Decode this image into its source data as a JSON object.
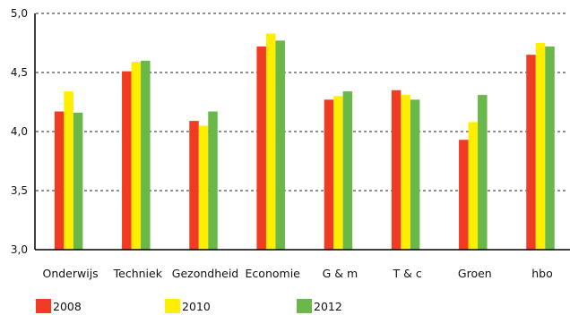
{
  "chart_data": {
    "type": "bar",
    "categories": [
      "Onderwijs",
      "Techniek",
      "Gezondheid",
      "Economie",
      "G & m",
      "T & c",
      "Groen",
      "hbo"
    ],
    "series": [
      {
        "name": "2008",
        "color": "#f03c24",
        "values": [
          4.17,
          4.51,
          4.09,
          4.72,
          4.27,
          4.35,
          3.93,
          4.65
        ]
      },
      {
        "name": "2010",
        "color": "#ffee00",
        "values": [
          4.34,
          4.59,
          4.05,
          4.83,
          4.3,
          4.31,
          4.08,
          4.75
        ]
      },
      {
        "name": "2012",
        "color": "#6ab84a",
        "values": [
          4.16,
          4.6,
          4.17,
          4.77,
          4.34,
          4.27,
          4.31,
          4.72
        ]
      }
    ],
    "yticks": [
      "3,0",
      "3,5",
      "4,0",
      "4,5",
      "5,0"
    ],
    "ytick_values": [
      3.0,
      3.5,
      4.0,
      4.5,
      5.0
    ],
    "ylim": [
      3.0,
      5.0
    ],
    "grid": "dashed horizontal",
    "legend": "bottom"
  }
}
